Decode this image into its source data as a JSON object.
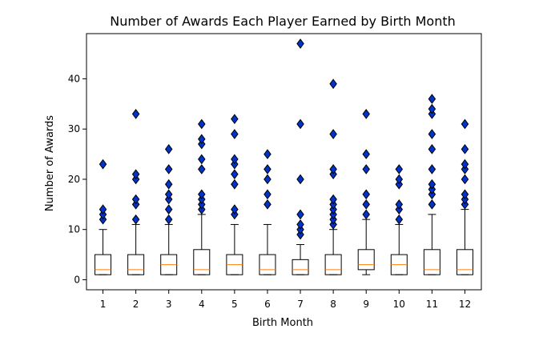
{
  "chart_data": {
    "type": "box",
    "title": "Number of Awards Each Player Earned by Birth Month",
    "xlabel": "Birth Month",
    "ylabel": "Number of Awards",
    "categories": [
      "1",
      "2",
      "3",
      "4",
      "5",
      "6",
      "7",
      "8",
      "9",
      "10",
      "11",
      "12"
    ],
    "ylim": [
      -2,
      49
    ],
    "yticks": [
      0,
      10,
      20,
      30,
      40
    ],
    "grid": false,
    "colors": {
      "box": "#000000",
      "median": "#ff7f0e",
      "flier_fill": "#0033cc",
      "flier_edge": "#000000"
    },
    "boxes": [
      {
        "month": "1",
        "whislo": 1,
        "q1": 1,
        "med": 2,
        "q3": 5,
        "whishi": 10,
        "fliers": [
          12,
          13,
          14,
          23
        ]
      },
      {
        "month": "2",
        "whislo": 1,
        "q1": 1,
        "med": 2,
        "q3": 5,
        "whishi": 11,
        "fliers": [
          12,
          15,
          16,
          20,
          21,
          33
        ]
      },
      {
        "month": "3",
        "whislo": 1,
        "q1": 1,
        "med": 3,
        "q3": 5,
        "whishi": 11,
        "fliers": [
          12,
          14,
          16,
          17,
          19,
          22,
          26
        ]
      },
      {
        "month": "4",
        "whislo": 1,
        "q1": 1,
        "med": 2,
        "q3": 6,
        "whishi": 13,
        "fliers": [
          14,
          15,
          16,
          17,
          22,
          24,
          27,
          28,
          31
        ]
      },
      {
        "month": "5",
        "whislo": 1,
        "q1": 1,
        "med": 3,
        "q3": 5,
        "whishi": 11,
        "fliers": [
          13,
          14,
          19,
          21,
          23,
          24,
          29,
          32
        ]
      },
      {
        "month": "6",
        "whislo": 1,
        "q1": 1,
        "med": 2,
        "q3": 5,
        "whishi": 11,
        "fliers": [
          15,
          17,
          20,
          22,
          25
        ]
      },
      {
        "month": "7",
        "whislo": 1,
        "q1": 1,
        "med": 2,
        "q3": 4,
        "whishi": 7,
        "fliers": [
          9,
          10,
          11,
          13,
          20,
          31,
          47
        ]
      },
      {
        "month": "8",
        "whislo": 1,
        "q1": 1,
        "med": 2,
        "q3": 5,
        "whishi": 10,
        "fliers": [
          11,
          12,
          13,
          14,
          15,
          16,
          21,
          22,
          29,
          39
        ]
      },
      {
        "month": "9",
        "whislo": 1,
        "q1": 2,
        "med": 3,
        "q3": 6,
        "whishi": 12,
        "fliers": [
          13,
          15,
          17,
          22,
          25,
          33
        ]
      },
      {
        "month": "10",
        "whislo": 1,
        "q1": 1,
        "med": 3,
        "q3": 5,
        "whishi": 11,
        "fliers": [
          12,
          14,
          15,
          19,
          20,
          22
        ]
      },
      {
        "month": "11",
        "whislo": 1,
        "q1": 1,
        "med": 2,
        "q3": 6,
        "whishi": 13,
        "fliers": [
          15,
          17,
          18,
          19,
          22,
          26,
          29,
          33,
          34,
          36
        ]
      },
      {
        "month": "12",
        "whislo": 1,
        "q1": 1,
        "med": 2,
        "q3": 6,
        "whishi": 14,
        "fliers": [
          15,
          16,
          17,
          20,
          22,
          23,
          26,
          31
        ]
      }
    ]
  }
}
